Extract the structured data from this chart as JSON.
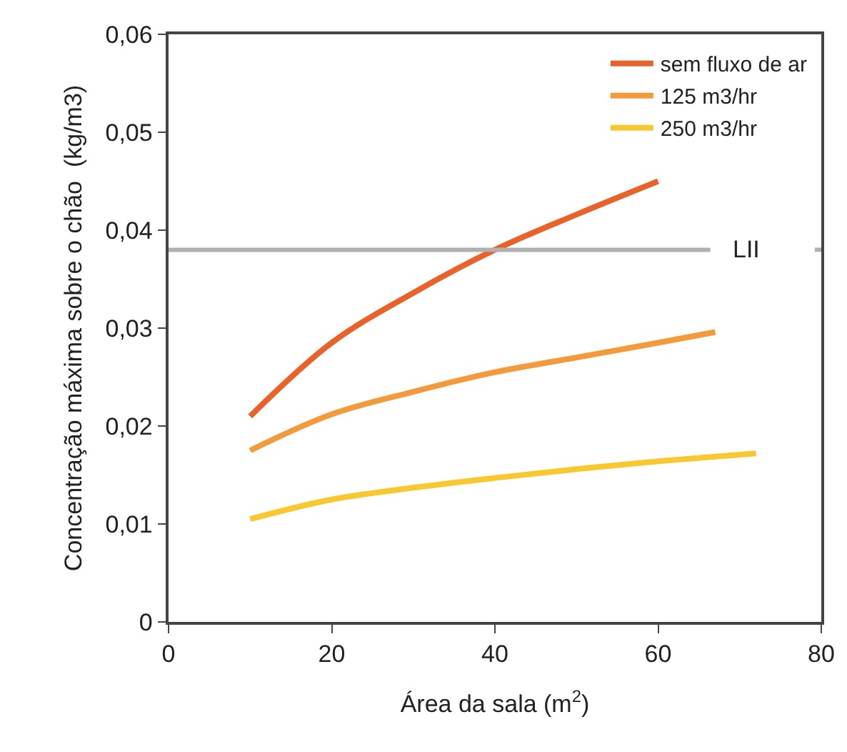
{
  "chart_data": {
    "type": "line",
    "xlabel": "Área da sala (m$^{2}$)",
    "ylabel": "Concentração máxima sobre o chão  (kg/m3)",
    "xlim": [
      0,
      80
    ],
    "xticks": [
      0,
      20,
      40,
      60,
      80
    ],
    "ylim": [
      0,
      0.06
    ],
    "yticks": [
      0,
      {
        "value": 0.01,
        "label": "0,01"
      },
      {
        "value": 0.02,
        "label": "0,02"
      },
      {
        "value": 0.03,
        "label": "0,03"
      },
      {
        "value": 0.04,
        "label": "0,04"
      },
      {
        "value": 0.05,
        "label": "0,05"
      },
      {
        "value": 0.06,
        "label": "0,06"
      }
    ],
    "grid": false,
    "legend": "top right",
    "marker": "none",
    "line_style": "solid",
    "series": [
      {
        "name": "sem fluxo de ar",
        "color": "#e8622a",
        "x": [
          10,
          20,
          30,
          40,
          50,
          60
        ],
        "values": [
          0.021,
          0.0285,
          0.0336,
          0.038,
          0.0416,
          0.045
        ]
      },
      {
        "name": "125 m3/hr",
        "color": "#f39a3c",
        "x": [
          10,
          20,
          30,
          40,
          50,
          60,
          67
        ],
        "values": [
          0.0175,
          0.0212,
          0.0235,
          0.0255,
          0.027,
          0.0285,
          0.0296
        ]
      },
      {
        "name": "250 m3/hr",
        "color": "#f7c830",
        "x": [
          10,
          20,
          30,
          40,
          50,
          60,
          72
        ],
        "values": [
          0.0105,
          0.0125,
          0.0137,
          0.0147,
          0.0156,
          0.0164,
          0.0172
        ]
      }
    ],
    "ref_lines": [
      {
        "axis": "y",
        "value": 0.038,
        "label": "LII",
        "color": "#b0b0b0"
      }
    ]
  }
}
